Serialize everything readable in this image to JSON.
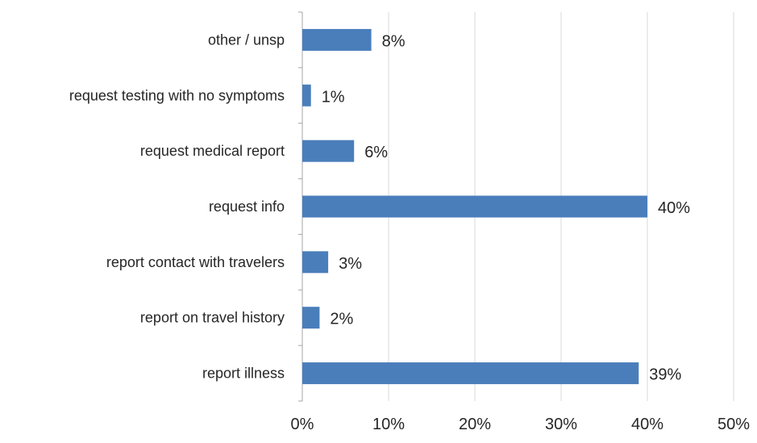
{
  "chart_data": {
    "type": "bar",
    "orientation": "horizontal",
    "categories": [
      "report illness",
      "report on travel history",
      "report contact with travelers",
      "request info",
      "request medical report",
      "request testing with no symptoms",
      "other / unsp"
    ],
    "values": [
      39,
      2,
      3,
      40,
      6,
      1,
      8
    ],
    "data_labels": [
      "39%",
      "2%",
      "3%",
      "40%",
      "6%",
      "1%",
      "8%"
    ],
    "xlim": [
      0,
      50
    ],
    "xticks": [
      0,
      10,
      20,
      30,
      40,
      50
    ],
    "xtick_labels": [
      "0%",
      "10%",
      "20%",
      "30%",
      "40%",
      "50%"
    ],
    "bar_color": "#4a7ebb",
    "grid": "vertical gridlines",
    "legend": "none",
    "title": "",
    "xlabel": "",
    "ylabel": ""
  }
}
